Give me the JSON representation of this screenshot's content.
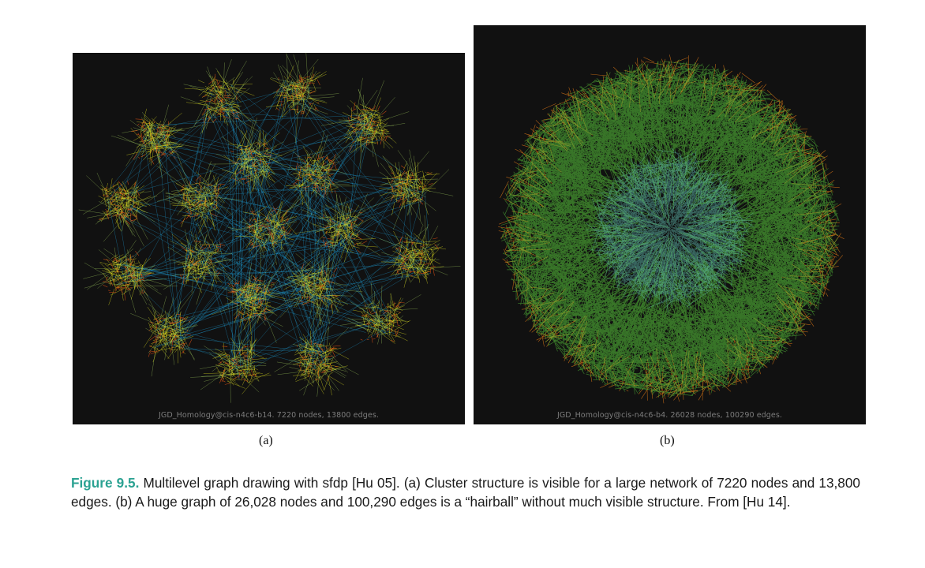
{
  "panel_a": {
    "caption": "JGD_Homology@cis-n4c6-b14. 7220 nodes, 13800 edges.",
    "label": "(a)"
  },
  "panel_b": {
    "caption": "JGD_Homology@cis-n4c6-b4. 26028 nodes, 100290 edges.",
    "label": "(b)"
  },
  "figure": {
    "number": "Figure 9.5.",
    "text": " Multilevel graph drawing with sfdp [Hu 05]. (a) Cluster structure is visible for a large network of 7220 nodes and 13,800 edges. (b) A huge graph of 26,028 nodes and 100,290 edges is a “hairball” without much visible structure. From [Hu 14]."
  },
  "colors": {
    "background": "#111111",
    "edge_short": "#ff5a14",
    "edge_mid": "#e6e61e",
    "edge_long": "#1e9bd2",
    "hairball_green": "#5ac83c",
    "hairball_center": "#6fd2e6",
    "figure_label": "#2ba292"
  }
}
